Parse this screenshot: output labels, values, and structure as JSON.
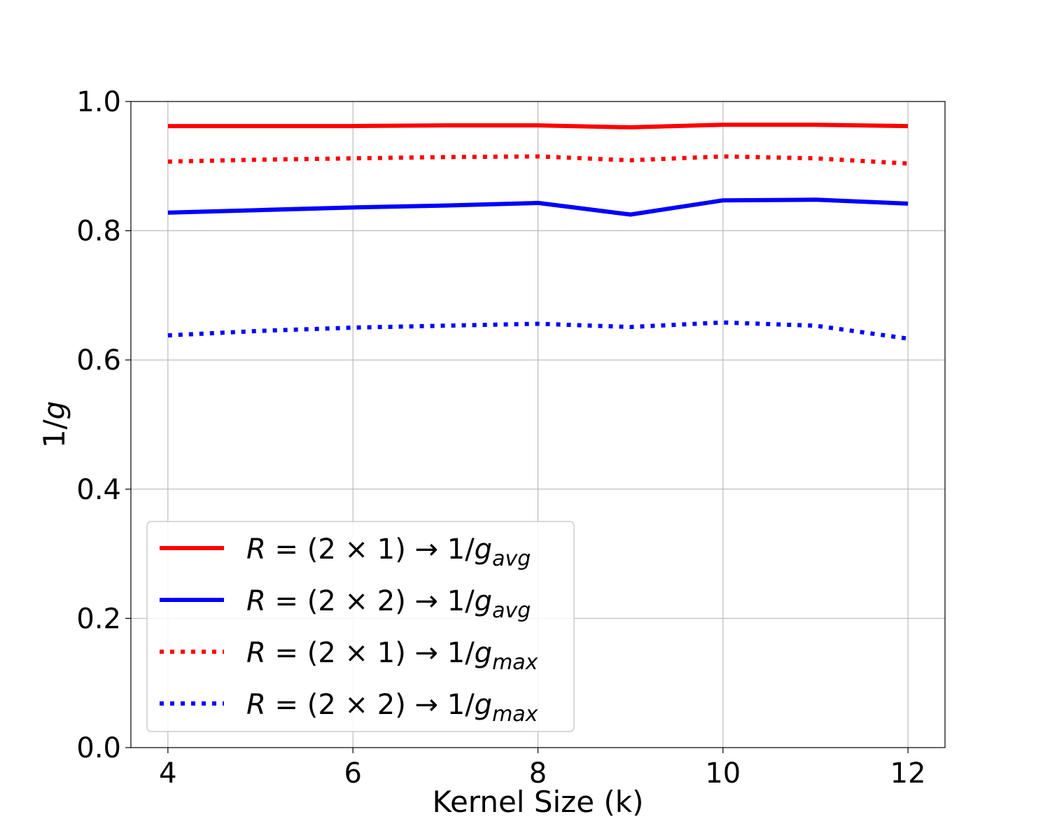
{
  "chart_data": {
    "type": "line",
    "xlabel": "Kernel Size (k)",
    "ylabel": "1/g",
    "xlim": [
      3.6,
      12.4
    ],
    "ylim": [
      0.0,
      1.0
    ],
    "x_ticks": [
      4,
      6,
      8,
      10,
      12
    ],
    "x_tick_labels": [
      "4",
      "6",
      "8",
      "10",
      "12"
    ],
    "y_ticks": [
      0.0,
      0.2,
      0.4,
      0.6,
      0.8,
      1.0
    ],
    "y_tick_labels": [
      "0.0",
      "0.2",
      "0.4",
      "0.6",
      "0.8",
      "1.0"
    ],
    "grid": true,
    "legend_position": "lower-left",
    "x": [
      4,
      5,
      6,
      7,
      8,
      9,
      10,
      11,
      12
    ],
    "series": [
      {
        "name": "R = (2 × 1) → 1/g_avg",
        "label_parts": {
          "var": "R",
          "eq": " = (2 × 1) ",
          "arrow": "→",
          "frac": " 1/",
          "g": "g",
          "sub": "avg"
        },
        "color": "#ff0000",
        "style": "solid",
        "values": [
          0.962,
          0.962,
          0.962,
          0.963,
          0.963,
          0.96,
          0.964,
          0.964,
          0.962
        ]
      },
      {
        "name": "R = (2 × 2) → 1/g_avg",
        "label_parts": {
          "var": "R",
          "eq": " = (2 × 2) ",
          "arrow": "→",
          "frac": " 1/",
          "g": "g",
          "sub": "avg"
        },
        "color": "#0000ff",
        "style": "solid",
        "values": [
          0.828,
          0.832,
          0.836,
          0.839,
          0.843,
          0.825,
          0.847,
          0.848,
          0.842
        ]
      },
      {
        "name": "R = (2 × 1) → 1/g_max",
        "label_parts": {
          "var": "R",
          "eq": " = (2 × 1) ",
          "arrow": "→",
          "frac": " 1/",
          "g": "g",
          "sub": "max"
        },
        "color": "#ff0000",
        "style": "dotted",
        "values": [
          0.907,
          0.91,
          0.912,
          0.914,
          0.915,
          0.909,
          0.915,
          0.912,
          0.904
        ]
      },
      {
        "name": "R = (2 × 2) → 1/g_max",
        "label_parts": {
          "var": "R",
          "eq": " = (2 × 2) ",
          "arrow": "→",
          "frac": " 1/",
          "g": "g",
          "sub": "max"
        },
        "color": "#0000ff",
        "style": "dotted",
        "values": [
          0.638,
          0.645,
          0.65,
          0.653,
          0.656,
          0.651,
          0.658,
          0.653,
          0.633
        ]
      }
    ]
  }
}
